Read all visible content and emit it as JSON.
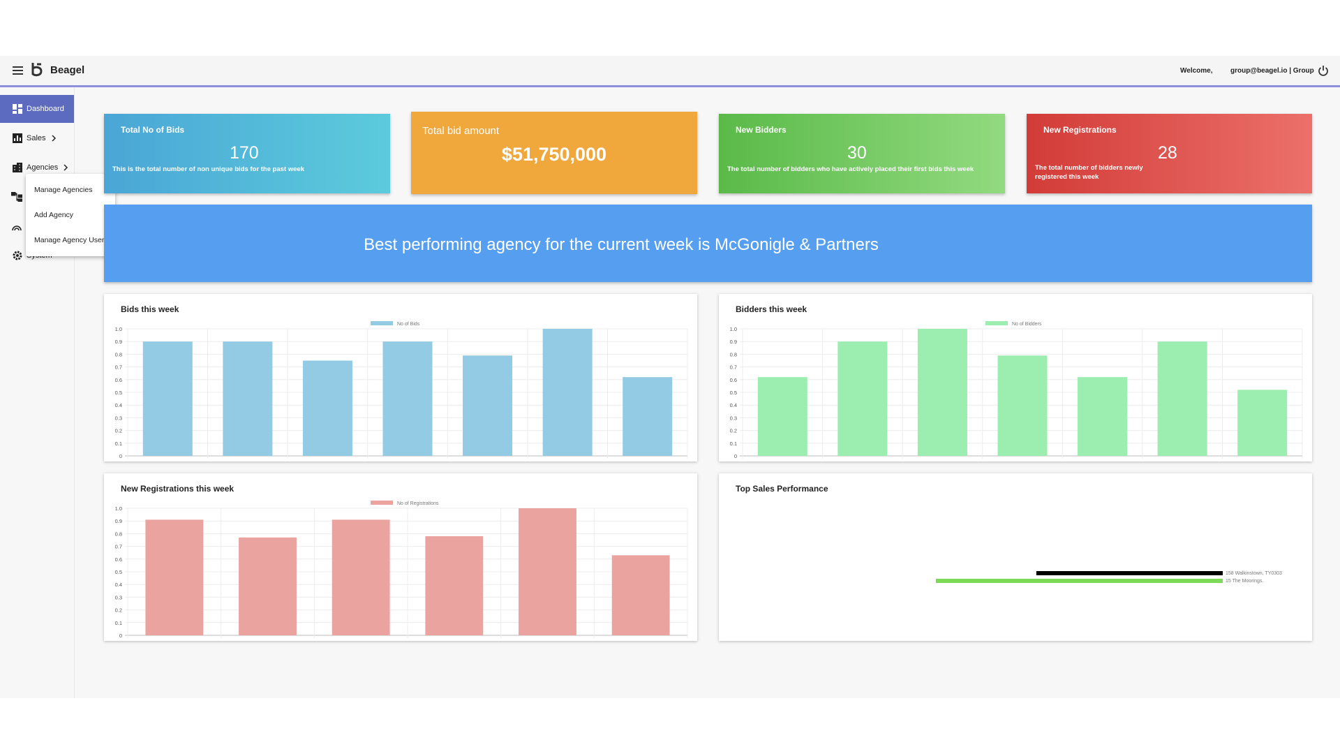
{
  "header": {
    "brand": "Beagel",
    "welcome": "Welcome,",
    "user": "group@beagel.io | Group"
  },
  "sidebar": {
    "items": [
      "Dashboard",
      "Sales",
      "Agencies",
      "System"
    ],
    "submenu": [
      "Manage Agencies",
      "Add Agency",
      "Manage Agency Users"
    ]
  },
  "cards": [
    {
      "title": "Total No of Bids",
      "value": "170",
      "description": "This is the total number of non unique bids for the past week"
    },
    {
      "title": "Total bid amount",
      "value": "$51,750,000"
    },
    {
      "title": "New Bidders",
      "value": "30",
      "description": "The total number of bidders who have actively placed their first bids this week"
    },
    {
      "title": "New Registrations",
      "value": "28",
      "description": "The total number of bidders newly registered this week"
    }
  ],
  "banner": "Best performing agency for the current week is McGonigle & Partners",
  "chart_data": [
    {
      "type": "bar",
      "title": "Bids this week",
      "series": [
        {
          "name": "No of Bids",
          "color": "#93cbe4",
          "values": [
            0.9,
            0.9,
            0.75,
            0.9,
            0.79,
            1,
            0.62
          ]
        }
      ],
      "ylim": [
        0,
        1
      ],
      "yticks": [
        0,
        0.1,
        0.2,
        0.3,
        0.4,
        0.5,
        0.6,
        0.7,
        0.8,
        0.9,
        {
          "value": 1,
          "label": "1.0"
        }
      ],
      "grid": true
    },
    {
      "type": "bar",
      "title": "Bidders this week",
      "series": [
        {
          "name": "No of Bidders",
          "color": "#9ceeb0",
          "values": [
            0.62,
            0.9,
            1,
            0.79,
            0.62,
            0.9,
            0.52
          ]
        }
      ],
      "ylim": [
        0,
        1
      ],
      "yticks": [
        0,
        0.1,
        0.2,
        0.3,
        0.4,
        0.5,
        0.6,
        0.7,
        0.8,
        0.9,
        {
          "value": 1,
          "label": "1.0"
        }
      ],
      "grid": true
    },
    {
      "type": "bar",
      "title": "New Registrations this week",
      "series": [
        {
          "name": "No of Registrations",
          "color": "#eba3a0",
          "values": [
            0.91,
            0.77,
            0.91,
            0.78,
            1,
            0.63
          ]
        }
      ],
      "ylim": [
        0,
        1
      ],
      "yticks": [
        0,
        0.1,
        0.2,
        0.3,
        0.4,
        0.5,
        0.6,
        0.7,
        0.8,
        0.9,
        {
          "value": 1,
          "label": "1.0"
        }
      ],
      "grid": true
    },
    {
      "type": "hbar",
      "title": "Top Sales Performance",
      "categories": [
        "158 Walkinstown, TY0303",
        "15 The Moorings."
      ],
      "values": [
        0.65,
        1
      ],
      "colors": [
        "#000000",
        "#7ed957"
      ],
      "xlim": [
        0,
        1
      ]
    }
  ]
}
